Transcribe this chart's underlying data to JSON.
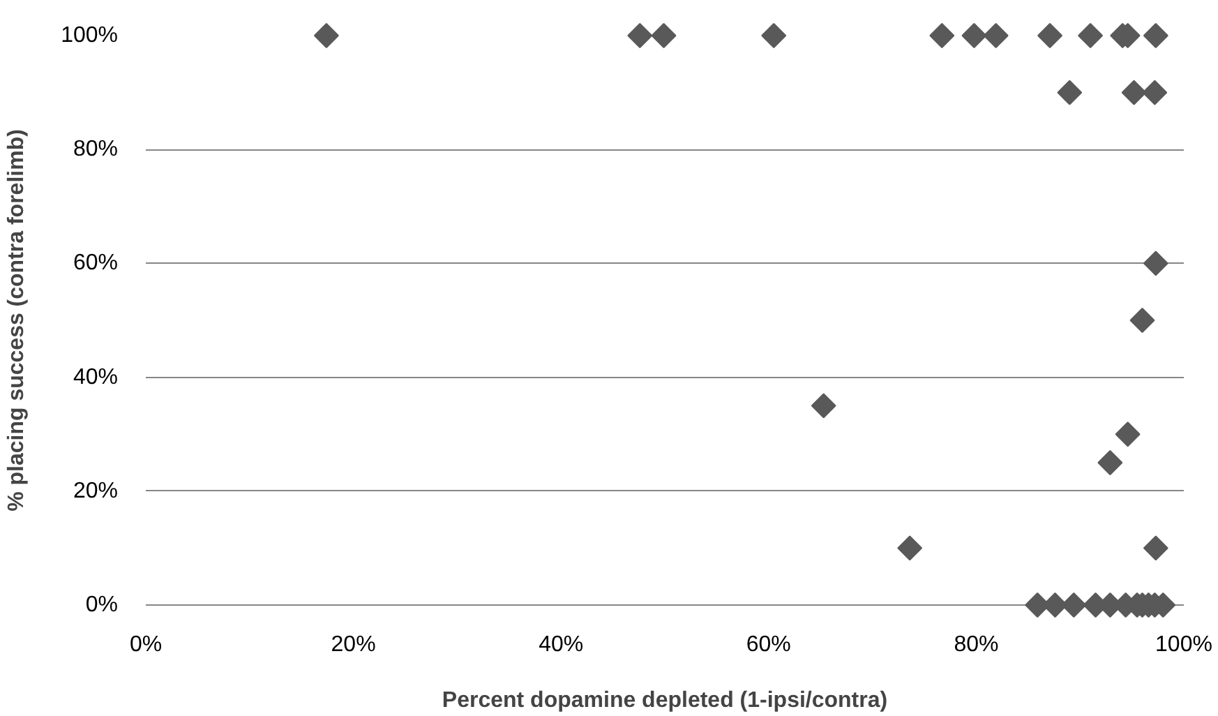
{
  "chart_data": {
    "type": "scatter",
    "xlabel": "Percent dopamine depleted (1-ipsi/contra)",
    "ylabel": "% placing success (contra forelimb)",
    "marker": "diamond",
    "grid": "y",
    "xlim": [
      0,
      100
    ],
    "ylim": [
      0,
      100
    ],
    "xticks": [
      {
        "value": 0,
        "label": "0%"
      },
      {
        "value": 20,
        "label": "20%"
      },
      {
        "value": 40,
        "label": "40%"
      },
      {
        "value": 60,
        "label": "60%"
      },
      {
        "value": 80,
        "label": "80%"
      },
      {
        "value": 100,
        "label": "100%"
      }
    ],
    "yticks": [
      {
        "value": 0,
        "label": "0%"
      },
      {
        "value": 20,
        "label": "20%"
      },
      {
        "value": 40,
        "label": "40%"
      },
      {
        "value": 60,
        "label": "60%"
      },
      {
        "value": 80,
        "label": "80%"
      },
      {
        "value": 100,
        "label": "100%"
      }
    ],
    "series": [
      {
        "color": "#595959",
        "x": [
          17.4,
          47.6,
          49.9,
          60.5,
          76.7,
          79.8,
          81.9,
          87.1,
          91.0,
          94.1,
          94.6,
          97.3,
          89.0,
          95.2,
          97.2,
          97.3,
          96.0,
          65.3,
          94.6,
          92.9,
          73.6,
          97.3,
          85.9,
          87.6,
          89.4,
          91.5,
          92.9,
          94.4,
          95.5,
          96.0,
          96.6,
          97.2,
          98.0
        ],
        "values": [
          100,
          100,
          100,
          100,
          100,
          100,
          100,
          100,
          100,
          100,
          100,
          100,
          90,
          90,
          90,
          60,
          50,
          35,
          30,
          25,
          10,
          10,
          0,
          0,
          0,
          0,
          0,
          0,
          0,
          0,
          0,
          0,
          0
        ]
      }
    ]
  }
}
